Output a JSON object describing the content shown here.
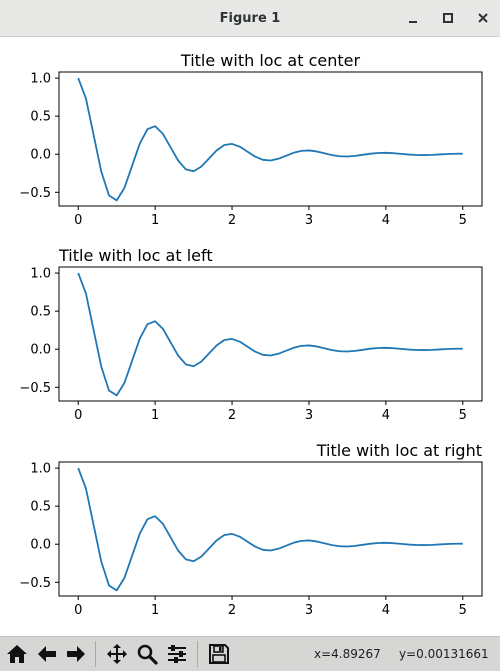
{
  "window": {
    "title": "Figure 1"
  },
  "toolbar": {
    "buttons": [
      {
        "name": "home",
        "icon": "home-icon"
      },
      {
        "name": "back",
        "icon": "arrow-left-icon"
      },
      {
        "name": "forward",
        "icon": "arrow-right-icon"
      },
      {
        "name": "pan",
        "icon": "move-icon"
      },
      {
        "name": "zoom",
        "icon": "magnifier-icon"
      },
      {
        "name": "configure-subplots",
        "icon": "sliders-icon"
      },
      {
        "name": "save",
        "icon": "floppy-disk-icon"
      }
    ],
    "x_readout": "x=4.89267",
    "y_readout": "y=0.00131661"
  },
  "colors": {
    "line": "#1f77b4",
    "axes": "#000000"
  },
  "chart_data": [
    {
      "type": "line",
      "title": "Title with loc at center",
      "title_loc": "center",
      "function": "exp(-x) * cos(2*pi*x)",
      "x_range": [
        0,
        5
      ],
      "samples": 51,
      "xticks": [
        "0",
        "1",
        "2",
        "3",
        "4",
        "5"
      ],
      "yticks": [
        "−0.5",
        "0.0",
        "0.5",
        "1.0"
      ],
      "ytick_values": [
        -0.5,
        0.0,
        0.5,
        1.0
      ],
      "xtick_values": [
        0,
        1,
        2,
        3,
        4,
        5
      ],
      "xlim": [
        -0.25,
        5.25
      ],
      "ylim": [
        -0.68,
        1.08
      ],
      "grid": false
    },
    {
      "type": "line",
      "title": "Title with loc at left",
      "title_loc": "left",
      "function": "exp(-x) * cos(2*pi*x)",
      "x_range": [
        0,
        5
      ],
      "samples": 51,
      "xticks": [
        "0",
        "1",
        "2",
        "3",
        "4",
        "5"
      ],
      "yticks": [
        "−0.5",
        "0.0",
        "0.5",
        "1.0"
      ],
      "ytick_values": [
        -0.5,
        0.0,
        0.5,
        1.0
      ],
      "xtick_values": [
        0,
        1,
        2,
        3,
        4,
        5
      ],
      "xlim": [
        -0.25,
        5.25
      ],
      "ylim": [
        -0.68,
        1.08
      ],
      "grid": false
    },
    {
      "type": "line",
      "title": "Title with loc at right",
      "title_loc": "right",
      "function": "exp(-x) * cos(2*pi*x)",
      "x_range": [
        0,
        5
      ],
      "samples": 51,
      "xticks": [
        "0",
        "1",
        "2",
        "3",
        "4",
        "5"
      ],
      "yticks": [
        "−0.5",
        "0.0",
        "0.5",
        "1.0"
      ],
      "ytick_values": [
        -0.5,
        0.0,
        0.5,
        1.0
      ],
      "xtick_values": [
        0,
        1,
        2,
        3,
        4,
        5
      ],
      "xlim": [
        -0.25,
        5.25
      ],
      "ylim": [
        -0.68,
        1.08
      ],
      "grid": false
    }
  ]
}
